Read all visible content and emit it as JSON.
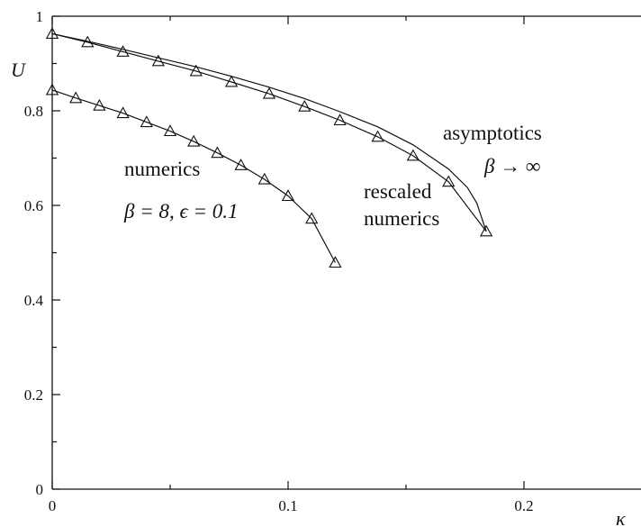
{
  "chart_data": {
    "type": "line",
    "xlabel": "κ",
    "ylabel": "U",
    "xlim": [
      0,
      0.25
    ],
    "ylim": [
      0,
      1
    ],
    "x_ticks": [
      {
        "value": 0,
        "label": "0"
      },
      {
        "value": 0.1,
        "label": "0.1"
      },
      {
        "value": 0.2,
        "label": "0.2"
      }
    ],
    "y_ticks": [
      {
        "value": 0,
        "label": "0"
      },
      {
        "value": 0.2,
        "label": "0.2"
      },
      {
        "value": 0.4,
        "label": "0.4"
      },
      {
        "value": 0.6,
        "label": "0.6"
      },
      {
        "value": 0.8,
        "label": "0.8"
      },
      {
        "value": 1,
        "label": "1"
      }
    ],
    "x_minor_ticks": [
      0.05,
      0.15
    ],
    "y_minor_ticks": [
      0.1,
      0.3,
      0.5,
      0.7,
      0.9
    ],
    "series": [
      {
        "key": "numerics",
        "markers": true,
        "x": [
          0,
          0.01,
          0.02,
          0.03,
          0.04,
          0.05,
          0.06,
          0.07,
          0.08,
          0.09,
          0.1,
          0.11,
          0.12
        ],
        "y": [
          0.844,
          0.827,
          0.811,
          0.795,
          0.776,
          0.757,
          0.735,
          0.711,
          0.685,
          0.655,
          0.62,
          0.572,
          0.479
        ]
      },
      {
        "key": "rescaled",
        "markers": true,
        "x": [
          0,
          0.015,
          0.03,
          0.045,
          0.061,
          0.076,
          0.092,
          0.107,
          0.122,
          0.138,
          0.153,
          0.168,
          0.184
        ],
        "y": [
          0.963,
          0.945,
          0.925,
          0.905,
          0.884,
          0.861,
          0.836,
          0.809,
          0.78,
          0.745,
          0.705,
          0.65,
          0.545
        ]
      },
      {
        "key": "asymptotics",
        "markers": false,
        "x": [
          0,
          0.015,
          0.03,
          0.045,
          0.061,
          0.076,
          0.092,
          0.107,
          0.122,
          0.138,
          0.153,
          0.168,
          0.176,
          0.18,
          0.184
        ],
        "y": [
          0.963,
          0.947,
          0.93,
          0.912,
          0.893,
          0.873,
          0.85,
          0.826,
          0.798,
          0.766,
          0.728,
          0.677,
          0.638,
          0.605,
          0.545
        ]
      }
    ],
    "annotations": {
      "numerics_title": "numerics",
      "numerics_params": "β = 8, ϵ = 0.1",
      "rescaled_line1": "rescaled",
      "rescaled_line2": "numerics",
      "asymptotics_title": "asymptotics",
      "asymptotics_limit": "β → ∞"
    },
    "grid": false
  }
}
